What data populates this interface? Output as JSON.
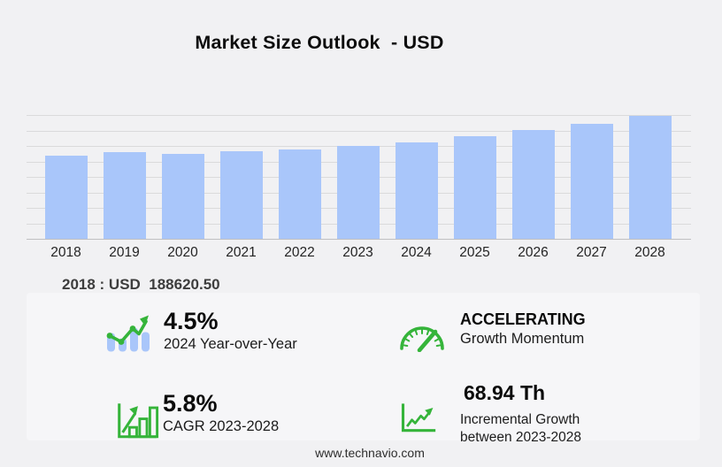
{
  "title": "Market Size Outlook  - USD",
  "highlight": {
    "display": "2018 : USD  188620.50"
  },
  "chart_data": {
    "type": "bar",
    "title": "Market Size Outlook - USD",
    "categories": [
      "2018",
      "2019",
      "2020",
      "2021",
      "2022",
      "2023",
      "2024",
      "2025",
      "2026",
      "2027",
      "2028"
    ],
    "values": [
      188620.5,
      197200,
      192600,
      198100,
      203300,
      210000,
      219450,
      232100,
      246200,
      261500,
      278940
    ],
    "xlabel": "",
    "ylabel": "",
    "ylim": [
      0,
      281000
    ],
    "grid": true,
    "gridline_intervals": 8,
    "legend": false,
    "bar_color": "#a9c6fa",
    "labeled_point": {
      "category": "2018",
      "value": "USD 188620.50"
    }
  },
  "stats": [
    {
      "value": "4.5%",
      "label": "2024 Year-over-Year",
      "icon": "bar-line-growth-icon"
    },
    {
      "value": "ACCELERATING",
      "label": "Growth Momentum",
      "icon": "gauge-icon"
    },
    {
      "value": "5.8%",
      "label": "CAGR 2023-2028",
      "icon": "bar-chart-arrow-icon"
    },
    {
      "value": "68.94 Th",
      "label_line1": "Incremental Growth",
      "label_line2": "between 2023-2028",
      "icon": "line-growth-arrow-icon"
    }
  ],
  "footer": {
    "url": "www.technavio.com"
  },
  "colors": {
    "accent_green": "#35b43a",
    "bar_blue": "#a9c6fa",
    "background": "#f1f1f3",
    "panel": "#f6f6f8"
  }
}
